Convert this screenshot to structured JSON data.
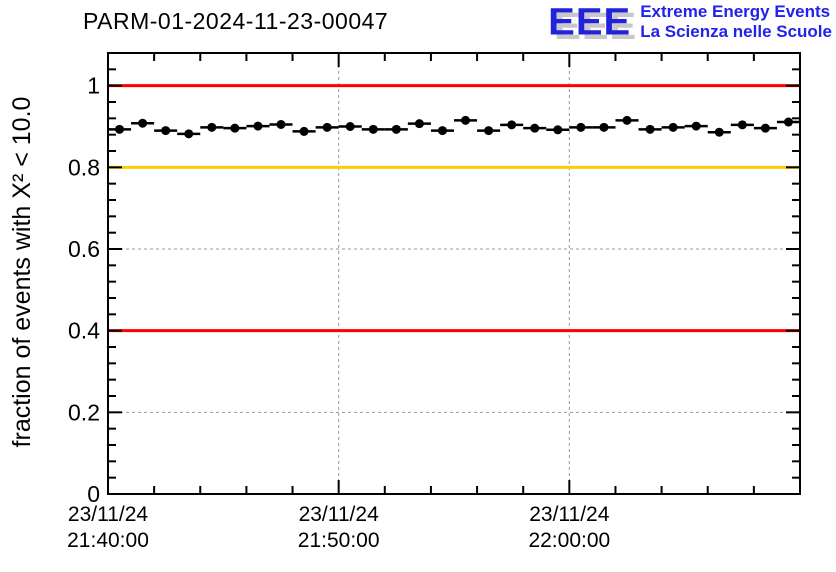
{
  "page": {
    "background": "#ffffff"
  },
  "header": {
    "title": "PARM-01-2024-11-23-00047",
    "logo": {
      "acronym": "EEE",
      "tagline_1": "Extreme Energy Events",
      "tagline_2": "La Scienza nelle Scuole",
      "color": "#2222ee",
      "shadow_color": "#c8c8c8"
    }
  },
  "chart_data": {
    "type": "scatter",
    "title": "PARM-01-2024-11-23-00047",
    "xlabel": "",
    "ylabel": "fraction of events with X² < 10.0",
    "ylim": [
      0,
      1.08
    ],
    "grid": true,
    "grid_color": "#999999",
    "frame_color": "#000000",
    "x_axis": {
      "start_label": "23/11/24 21:40:00",
      "span_minutes": 30,
      "major_tick_minutes": [
        0,
        10,
        20
      ],
      "minor_tick_step_minutes": 2,
      "tick_labels": [
        {
          "line1": "23/11/24",
          "line2": "21:40:00"
        },
        {
          "line1": "23/11/24",
          "line2": "21:50:00"
        },
        {
          "line1": "23/11/24",
          "line2": "22:00:00"
        }
      ]
    },
    "y_axis": {
      "major_ticks": [
        0,
        0.2,
        0.4,
        0.6,
        0.8,
        1.0
      ],
      "tick_labels": [
        "0",
        "0.2",
        "0.4",
        "0.6",
        "0.8",
        "1"
      ],
      "minor_tick_step": 0.04
    },
    "reference_lines": [
      {
        "y": 1.0,
        "color": "#ff0000"
      },
      {
        "y": 0.8,
        "color": "#ffcc00"
      },
      {
        "y": 0.4,
        "color": "#ff0000"
      }
    ],
    "series": [
      {
        "name": "fraction of events with chi2 < 10 per 1-minute bin",
        "marker": "filled-circle",
        "color": "#000000",
        "bin_minutes": 1,
        "values": [
          0.893,
          0.908,
          0.89,
          0.882,
          0.898,
          0.896,
          0.901,
          0.905,
          0.888,
          0.898,
          0.9,
          0.893,
          0.893,
          0.907,
          0.89,
          0.915,
          0.89,
          0.904,
          0.896,
          0.892,
          0.898,
          0.898,
          0.915,
          0.893,
          0.898,
          0.901,
          0.886,
          0.904,
          0.896,
          0.911
        ]
      }
    ]
  }
}
